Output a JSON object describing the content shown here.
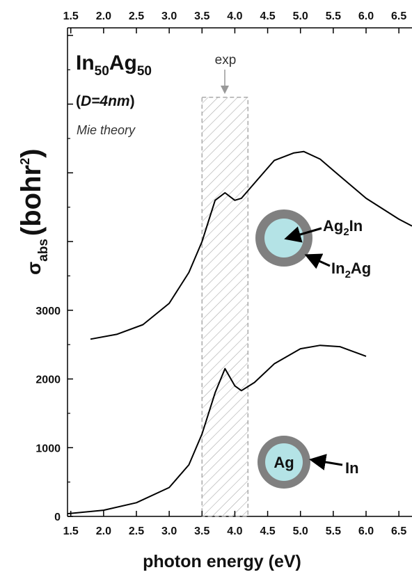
{
  "chart_data": {
    "type": "line",
    "title_parts": [
      "In",
      "50",
      "Ag",
      "50"
    ],
    "subtitle_parts": [
      "(",
      "D=4nm",
      ")"
    ],
    "method": "Mie theory",
    "x_label": "photon energy (eV)",
    "y_label_parts": [
      "σ",
      "abs",
      "(bohr",
      "2",
      ")"
    ],
    "xlim": [
      1.45,
      6.7
    ],
    "ylim": [
      0,
      7110
    ],
    "xticks": [
      1.5,
      {
        "value": 2,
        "label": "2.0"
      },
      2.5,
      {
        "value": 3,
        "label": "3.0"
      },
      3.5,
      {
        "value": 4,
        "label": "4.0"
      },
      4.5,
      {
        "value": 5,
        "label": "5.0"
      },
      5.5,
      {
        "value": 6,
        "label": "6.0"
      },
      6.5
    ],
    "yticks": [
      0,
      1000,
      2000,
      3000
    ],
    "yticks_unlabeled": [
      4000,
      5000,
      6000,
      7000
    ],
    "yticks_minor": [
      500,
      1500,
      2500,
      3500,
      4500,
      5500,
      6500
    ],
    "exp_label": "exp",
    "exp_range": [
      3.5,
      4.2
    ],
    "exp_top": 6100,
    "series": [
      {
        "color": "#000000",
        "core_parts": [
          "Ag",
          "2",
          "In"
        ],
        "shell_parts": [
          "In",
          "2",
          "Ag"
        ],
        "x": [
          1.8,
          2.2,
          2.6,
          3.0,
          3.3,
          3.5,
          3.7,
          3.85,
          4.0,
          4.1,
          4.3,
          4.6,
          4.9,
          5.05,
          5.3,
          5.5,
          6.0,
          6.5,
          6.7
        ],
        "values": [
          2580,
          2650,
          2790,
          3100,
          3550,
          4000,
          4600,
          4710,
          4600,
          4630,
          4850,
          5180,
          5290,
          5310,
          5200,
          5035,
          4630,
          4326,
          4225
        ]
      },
      {
        "color": "#000000",
        "core_parts": [
          "Ag"
        ],
        "shell_parts": [
          "In"
        ],
        "x": [
          1.45,
          2.0,
          2.5,
          3.0,
          3.3,
          3.5,
          3.7,
          3.85,
          4.0,
          4.1,
          4.3,
          4.6,
          5.0,
          5.3,
          5.6,
          6.0
        ],
        "values": [
          40,
          90,
          200,
          420,
          750,
          1200,
          1800,
          2150,
          1900,
          1830,
          1950,
          2220,
          2440,
          2490,
          2470,
          2330
        ]
      }
    ]
  }
}
